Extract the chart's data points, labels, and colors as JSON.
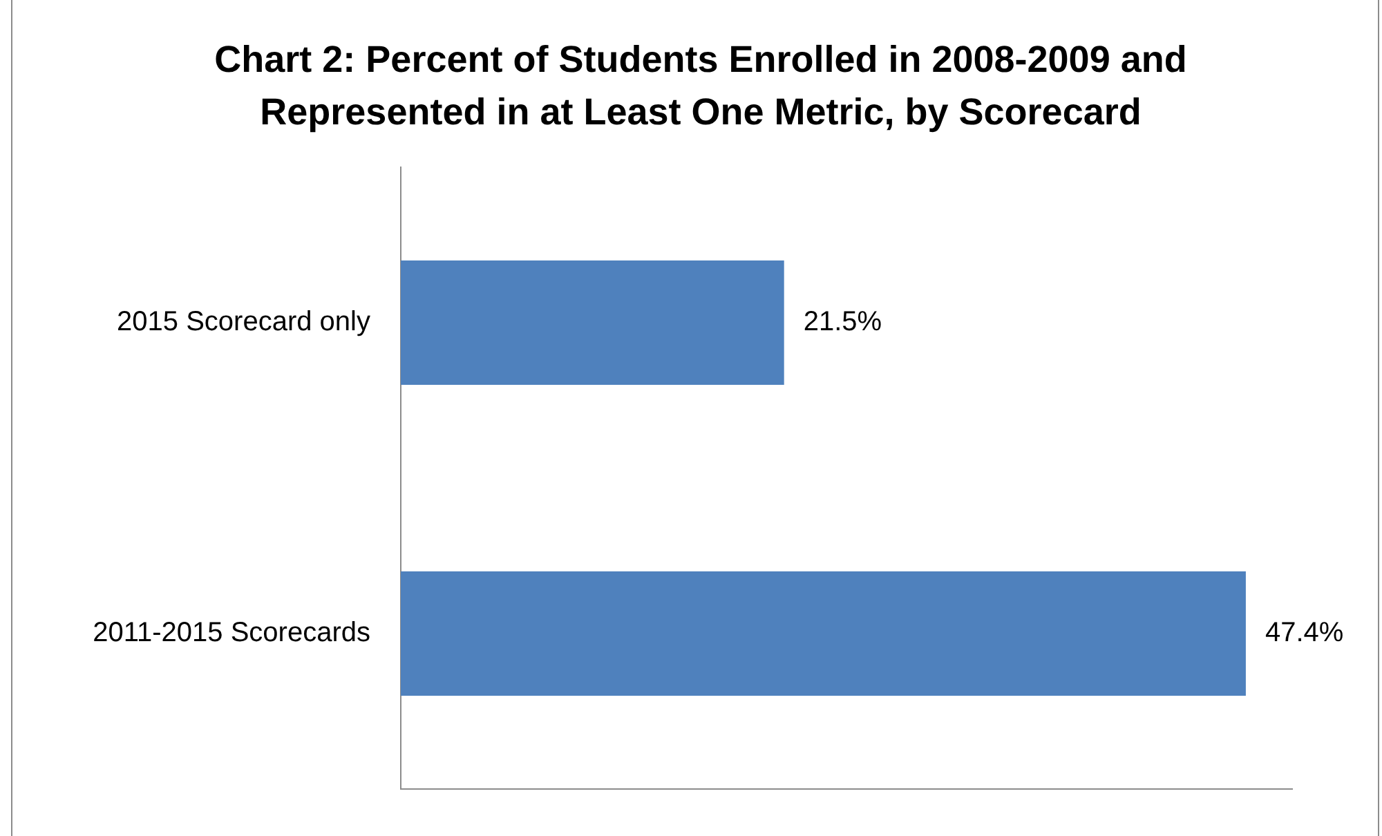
{
  "chart_data": {
    "type": "bar",
    "orientation": "horizontal",
    "title": "Chart 2:  Percent of Students Enrolled in 2008-2009 and Represented in at Least One Metric, by Scorecard",
    "categories": [
      "2015 Scorecard only",
      "2011-2015 Scorecards"
    ],
    "series": [
      {
        "color": "#4f81bd",
        "values": [
          21.5,
          47.4
        ],
        "value_labels": [
          "21.5%",
          "47.4%"
        ]
      }
    ],
    "xlim": [
      0,
      50
    ],
    "grid": false,
    "legend": false,
    "tick_labels": "y"
  }
}
